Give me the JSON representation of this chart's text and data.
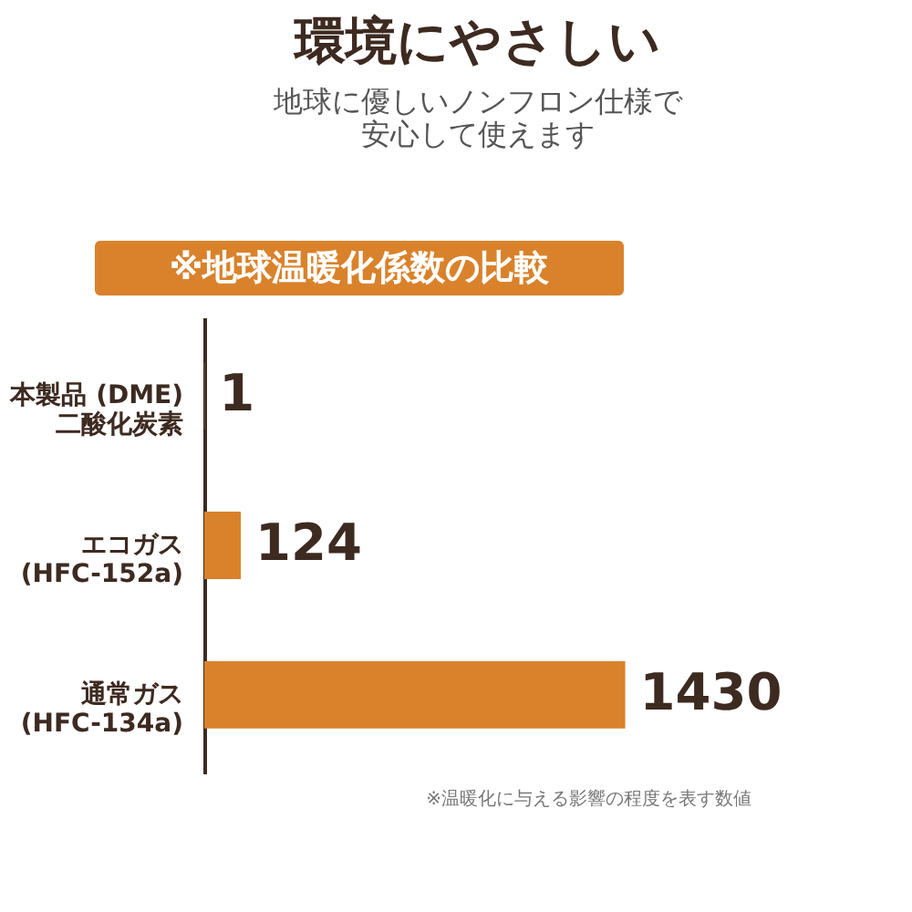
{
  "chart_data": {
    "type": "bar",
    "orientation": "horizontal",
    "title": "環境にやさしい",
    "subtitle": "地球に優しいノンフロン仕様で安心して使えます",
    "categories": [
      "本製品 (DME)\n二酸化炭素",
      "エコガス\n(HFC-152a)",
      "通常ガス\n(HFC-134a)"
    ],
    "values": [
      1,
      124,
      1430
    ],
    "color": "#d9822b",
    "data_labels": true,
    "annotations": [
      "※地球温暖化係数の比較",
      "※温暖化に与える影響の程度を表す数値"
    ]
  }
}
